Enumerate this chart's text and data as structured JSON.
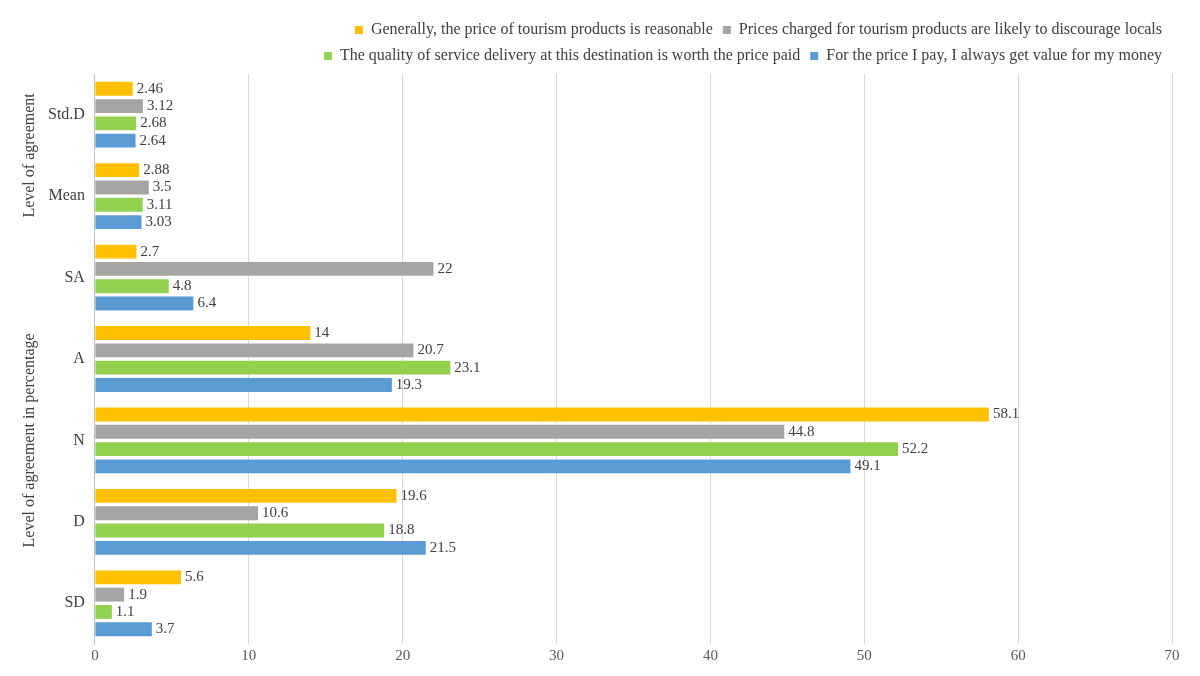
{
  "chart_data": {
    "type": "bar",
    "orientation": "horizontal",
    "ylabel": "Level of agreement in percentage",
    "annotations": [
      "Level of agreement"
    ],
    "categories": [
      "Std.D",
      "Mean",
      "SA",
      "A",
      "N",
      "D",
      "SD"
    ],
    "series": [
      {
        "name": "Generally, the price of tourism products is reasonable",
        "color": "#ffc000",
        "values": [
          2.46,
          2.88,
          2.7,
          14,
          58.1,
          19.6,
          5.6
        ]
      },
      {
        "name": "Prices charged for tourism products are likely to discourage locals",
        "color": "#a5a5a5",
        "values": [
          3.12,
          3.5,
          22,
          20.7,
          44.8,
          10.6,
          1.9
        ]
      },
      {
        "name": "The quality of service delivery at this destination is worth the price paid",
        "color": "#92d050",
        "values": [
          2.68,
          3.11,
          4.8,
          23.1,
          52.2,
          18.8,
          1.1
        ]
      },
      {
        "name": "For the price I pay, I always get value for my money",
        "color": "#5b9bd5",
        "values": [
          2.64,
          3.03,
          6.4,
          19.3,
          49.1,
          21.5,
          3.7
        ]
      }
    ],
    "xlim": [
      0,
      70
    ],
    "xticks": [
      0,
      10,
      20,
      30,
      40,
      50,
      60,
      70
    ],
    "grid": "x",
    "legend": "top right",
    "data_labels": true
  }
}
